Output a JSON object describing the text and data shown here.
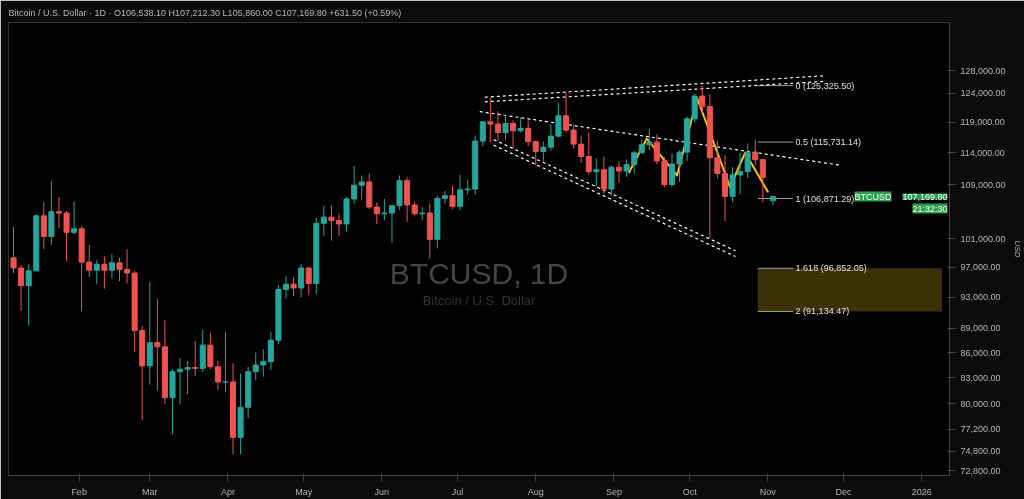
{
  "chart_data": {
    "type": "candlestick",
    "title": "BTCUSD, 1D",
    "subtitle": "Bitcoin / U.S. Dollar",
    "ylabel": "USD",
    "log": "y",
    "grid": false,
    "colors": [
      "#ef5350",
      "#ef5350",
      "#26a69a",
      "#26a69a",
      "#ef5350",
      "#26a69a",
      "#ef5350",
      "#ef5350",
      "#26a69a",
      "#ef5350",
      "#ef5350",
      "#26a69a",
      "#ef5350",
      "#26a69a",
      "#ef5350",
      "#ef5350",
      "#ef5350",
      "#ef5350",
      "#26a69a",
      "#ef5350",
      "#ef5350",
      "#26a69a",
      "#26a69a",
      "#26a69a",
      "#ef5350",
      "#26a69a",
      "#ef5350",
      "#ef5350",
      "#26a69a",
      "#ef5350",
      "#26a69a",
      "#26a69a",
      "#26a69a",
      "#26a69a",
      "#26a69a",
      "#26a69a",
      "#26a69a",
      "#ef5350",
      "#26a69a",
      "#ef5350",
      "#26a69a",
      "#26a69a",
      "#ef5350",
      "#ef5350",
      "#26a69a",
      "#26a69a",
      "#26a69a",
      "#ef5350",
      "#ef5350",
      "#26a69a",
      "#26a69a",
      "#26a69a",
      "#ef5350",
      "#ef5350",
      "#26a69a",
      "#ef5350",
      "#26a69a",
      "#26a69a",
      "#ef5350",
      "#26a69a",
      "#26a69a",
      "#26a69a",
      "#26a69a",
      "#ef5350",
      "#ef5350",
      "#26a69a",
      "#ef5350",
      "#26a69a",
      "#ef5350",
      "#ef5350",
      "#26a69a",
      "#26a69a",
      "#26a69a",
      "#ef5350",
      "#ef5350",
      "#ef5350",
      "#ef5350",
      "#26a69a",
      "#ef5350",
      "#26a69a",
      "#ef5350",
      "#26a69a",
      "#26a69a",
      "#26a69a",
      "#26a69a",
      "#ef5350",
      "#ef5350",
      "#26a69a",
      "#26a69a",
      "#26a69a",
      "#26a69a",
      "#ef5350",
      "#ef5350",
      "#ef5350",
      "#ef5350",
      "#26a69a",
      "#26a69a",
      "#26a69a",
      "#ef5350",
      "#ef5350",
      "#26a69a"
    ],
    "x": [
      "2025-01-06",
      "2025-01-09",
      "2025-01-12",
      "2025-01-15",
      "2025-01-18",
      "2025-01-21",
      "2025-01-24",
      "2025-01-27",
      "2025-01-30",
      "2025-02-02",
      "2025-02-05",
      "2025-02-08",
      "2025-02-11",
      "2025-02-14",
      "2025-02-17",
      "2025-02-20",
      "2025-02-23",
      "2025-02-26",
      "2025-03-01",
      "2025-03-04",
      "2025-03-07",
      "2025-03-10",
      "2025-03-13",
      "2025-03-16",
      "2025-03-19",
      "2025-03-22",
      "2025-03-25",
      "2025-03-28",
      "2025-03-31",
      "2025-04-03",
      "2025-04-06",
      "2025-04-09",
      "2025-04-12",
      "2025-04-15",
      "2025-04-18",
      "2025-04-21",
      "2025-04-24",
      "2025-04-27",
      "2025-04-30",
      "2025-05-03",
      "2025-05-06",
      "2025-05-09",
      "2025-05-12",
      "2025-05-15",
      "2025-05-18",
      "2025-05-21",
      "2025-05-24",
      "2025-05-27",
      "2025-05-30",
      "2025-06-02",
      "2025-06-05",
      "2025-06-08",
      "2025-06-11",
      "2025-06-14",
      "2025-06-17",
      "2025-06-20",
      "2025-06-23",
      "2025-06-26",
      "2025-06-29",
      "2025-07-02",
      "2025-07-05",
      "2025-07-08",
      "2025-07-11",
      "2025-07-14",
      "2025-07-17",
      "2025-07-20",
      "2025-07-23",
      "2025-07-26",
      "2025-07-29",
      "2025-08-01",
      "2025-08-04",
      "2025-08-07",
      "2025-08-10",
      "2025-08-13",
      "2025-08-16",
      "2025-08-19",
      "2025-08-22",
      "2025-08-25",
      "2025-08-28",
      "2025-08-31",
      "2025-09-03",
      "2025-09-06",
      "2025-09-09",
      "2025-09-12",
      "2025-09-15",
      "2025-09-18",
      "2025-09-21",
      "2025-09-24",
      "2025-09-27",
      "2025-09-30",
      "2025-10-03",
      "2025-10-06",
      "2025-10-09",
      "2025-10-12",
      "2025-10-15",
      "2025-10-18",
      "2025-10-21",
      "2025-10-24",
      "2025-10-27",
      "2025-10-30",
      "2025-11-03"
    ],
    "ohlc": [
      [
        98300,
        102700,
        96200,
        96900
      ],
      [
        96900,
        97300,
        91200,
        94500
      ],
      [
        94500,
        97400,
        89300,
        96500
      ],
      [
        96500,
        104500,
        96500,
        104300
      ],
      [
        104300,
        106300,
        99500,
        101300
      ],
      [
        101300,
        109500,
        100100,
        104900
      ],
      [
        104900,
        107100,
        102500,
        104700
      ],
      [
        104700,
        105000,
        97800,
        101900
      ],
      [
        101900,
        106400,
        101600,
        102400
      ],
      [
        102400,
        102800,
        91200,
        97700
      ],
      [
        97700,
        100100,
        95700,
        96600
      ],
      [
        96600,
        98000,
        94700,
        97400
      ],
      [
        97400,
        98500,
        94100,
        96600
      ],
      [
        96600,
        98800,
        95500,
        97600
      ],
      [
        97600,
        98300,
        95100,
        96700
      ],
      [
        96700,
        99500,
        94800,
        96200
      ],
      [
        96200,
        96500,
        86100,
        88700
      ],
      [
        88700,
        89300,
        78200,
        84400
      ],
      [
        84400,
        95000,
        82200,
        87200
      ],
      [
        87200,
        92800,
        81500,
        86700
      ],
      [
        86700,
        90000,
        80000,
        80700
      ],
      [
        80700,
        84000,
        76600,
        83700
      ],
      [
        83700,
        85300,
        79900,
        84000
      ],
      [
        84000,
        85000,
        81100,
        84200
      ],
      [
        84200,
        87400,
        83200,
        84100
      ],
      [
        84100,
        88800,
        83700,
        86900
      ],
      [
        86900,
        88400,
        84000,
        84300
      ],
      [
        84300,
        85000,
        81600,
        82500
      ],
      [
        82500,
        88500,
        81300,
        82500
      ],
      [
        82500,
        84700,
        74500,
        76300
      ],
      [
        76300,
        83500,
        74500,
        79600
      ],
      [
        79600,
        84300,
        78400,
        83700
      ],
      [
        83700,
        86000,
        82700,
        84500
      ],
      [
        84500,
        86400,
        83100,
        84900
      ],
      [
        84900,
        88500,
        83900,
        87500
      ],
      [
        87500,
        94600,
        87000,
        94000
      ],
      [
        94000,
        95800,
        92800,
        94700
      ],
      [
        94700,
        95600,
        93100,
        94200
      ],
      [
        94200,
        97400,
        93000,
        96900
      ],
      [
        96900,
        97000,
        93300,
        94800
      ],
      [
        94800,
        104000,
        93400,
        103200
      ],
      [
        103200,
        105800,
        101400,
        104100
      ],
      [
        104100,
        105800,
        100700,
        103600
      ],
      [
        103600,
        104600,
        101400,
        103100
      ],
      [
        103100,
        107100,
        102000,
        106800
      ],
      [
        106800,
        111900,
        106100,
        108900
      ],
      [
        108900,
        110400,
        106700,
        109400
      ],
      [
        109400,
        110700,
        105300,
        105600
      ],
      [
        105600,
        106300,
        103100,
        104600
      ],
      [
        104600,
        106800,
        103700,
        104700
      ],
      [
        104700,
        105900,
        100400,
        105800
      ],
      [
        105800,
        110400,
        105200,
        109600
      ],
      [
        109600,
        110200,
        103400,
        105900
      ],
      [
        105900,
        106400,
        104300,
        104600
      ],
      [
        104600,
        105600,
        103600,
        104700
      ],
      [
        104700,
        106100,
        98200,
        100900
      ],
      [
        100900,
        107300,
        99600,
        106900
      ],
      [
        106900,
        108000,
        106100,
        107300
      ],
      [
        107300,
        108800,
        105300,
        105700
      ],
      [
        105700,
        110500,
        105100,
        108200
      ],
      [
        108200,
        109700,
        107500,
        108300
      ],
      [
        108300,
        116800,
        107500,
        115900
      ],
      [
        115900,
        119200,
        115100,
        119100
      ],
      [
        119100,
        123200,
        115700,
        118700
      ],
      [
        118700,
        120900,
        116000,
        117300
      ],
      [
        117300,
        120200,
        116100,
        118800
      ],
      [
        118800,
        119300,
        114700,
        117600
      ],
      [
        117600,
        119800,
        117300,
        118000
      ],
      [
        118000,
        119300,
        115100,
        115800
      ],
      [
        115800,
        116000,
        112000,
        114200
      ],
      [
        114200,
        115800,
        112600,
        114900
      ],
      [
        114900,
        118700,
        114300,
        116700
      ],
      [
        116700,
        122300,
        116600,
        120100
      ],
      [
        120100,
        124100,
        117300,
        117700
      ],
      [
        117700,
        118600,
        114700,
        115400
      ],
      [
        115400,
        116800,
        112400,
        113400
      ],
      [
        113400,
        117300,
        110600,
        111000
      ],
      [
        111000,
        113100,
        108700,
        111300
      ],
      [
        111300,
        113400,
        107500,
        108300
      ],
      [
        108300,
        112000,
        107300,
        111700
      ],
      [
        111700,
        112600,
        109300,
        111100
      ],
      [
        111100,
        112900,
        110200,
        112100
      ],
      [
        112100,
        114300,
        110700,
        114000
      ],
      [
        114000,
        116300,
        113900,
        115300
      ],
      [
        115300,
        117900,
        114400,
        115700
      ],
      [
        115700,
        117000,
        112200,
        112700
      ],
      [
        112700,
        113300,
        108600,
        109000
      ],
      [
        109000,
        113900,
        108700,
        112200
      ],
      [
        112200,
        114400,
        109400,
        114100
      ],
      [
        114100,
        120000,
        112700,
        119600
      ],
      [
        119600,
        123900,
        119000,
        123500
      ],
      [
        123500,
        125300,
        120600,
        121700
      ],
      [
        121700,
        123800,
        101000,
        113200
      ],
      [
        113200,
        116000,
        110000,
        110700
      ],
      [
        110700,
        113600,
        103500,
        107200
      ],
      [
        107200,
        111700,
        106400,
        110500
      ],
      [
        110500,
        114000,
        107500,
        111000
      ],
      [
        111000,
        115500,
        110000,
        114100
      ],
      [
        114100,
        116100,
        112000,
        112900
      ],
      [
        112900,
        113000,
        106300,
        110100
      ],
      [
        106538.1,
        107212.3,
        105860,
        107169.8
      ]
    ],
    "series": [
      {
        "type": "line",
        "color": "#ffffff",
        "line_style": "dotted",
        "x": [
          "2025-07-12",
          "2025-11-24"
        ],
        "values": [
          123300,
          127100
        ]
      },
      {
        "type": "line",
        "color": "#ffffff",
        "line_style": "dotted",
        "x": [
          "2025-07-12",
          "2025-11-24"
        ],
        "values": [
          122500,
          126100
        ]
      },
      {
        "type": "line",
        "color": "#ffffff",
        "line_style": "dotted",
        "x": [
          "2025-07-10",
          "2025-11-30"
        ],
        "values": [
          120800,
          112000
        ]
      },
      {
        "type": "line",
        "color": "#ffffff",
        "line_style": "dotted",
        "x": [
          "2025-07-15T12:00",
          "2025-10-19"
        ],
        "values": [
          116100,
          99300
        ]
      },
      {
        "type": "line",
        "color": "#ffffff",
        "line_style": "dotted",
        "x": [
          "2025-07-15T12:00",
          "2025-10-19"
        ],
        "values": [
          115200,
          98500
        ]
      },
      {
        "type": "line",
        "color": "#f2c21b",
        "line_style": "solid",
        "x": [
          "2025-09-07",
          "2025-09-14",
          "2025-09-26",
          "2025-10-04",
          "2025-10-11",
          "2025-10-17",
          "2025-10-23",
          "2025-11-01"
        ],
        "values": [
          110900,
          116300,
          110400,
          123100,
          115100,
          108600,
          114000,
          107900
        ]
      }
    ],
    "ref_lines": [
      {
        "axis": "y",
        "value": 125325.5,
        "label": "0 (125,325.50)",
        "color": "#9e9e9e"
      },
      {
        "axis": "y",
        "value": 115731.14,
        "label": "0.5 (115,731.14)",
        "color": "#9e9e9e"
      },
      {
        "axis": "y",
        "value": 106871.29,
        "label": "1 (106,871.29)",
        "color": "#9e9e9e"
      },
      {
        "axis": "y",
        "value": 96852.05,
        "label": "1.618 (96,852.05)",
        "color": "#9e9e9e"
      },
      {
        "axis": "y",
        "value": 91134.47,
        "label": "2 (91,134.47)",
        "color": "#9e9e9e"
      }
    ],
    "bands": [
      {
        "axis": "y",
        "from": 91134.47,
        "to": 96852.05,
        "color": "#3a3106"
      }
    ],
    "annotations": [
      "Bitcoin / U.S. Dollar · 1D · O106,538.10 H107,212.30 L105,860.00 C107,169.80 +631.50 (+0.59%)",
      "BTCUSD",
      "107,169.80",
      "21:32:30"
    ],
    "xlim": [
      "2025-01-04",
      "2026-01-12"
    ],
    "xticks": [
      {
        "value": "2025-02-01",
        "label": "Feb"
      },
      {
        "value": "2025-03-01",
        "label": "Mar"
      },
      {
        "value": "2025-04-01",
        "label": "Apr"
      },
      {
        "value": "2025-05-01",
        "label": "May"
      },
      {
        "value": "2025-06-01",
        "label": "Jun"
      },
      {
        "value": "2025-07-01",
        "label": "Jul"
      },
      {
        "value": "2025-08-01",
        "label": "Aug"
      },
      {
        "value": "2025-09-01",
        "label": "Sep"
      },
      {
        "value": "2025-10-01",
        "label": "Oct"
      },
      {
        "value": "2025-11-01",
        "label": "Nov"
      },
      {
        "value": "2025-12-01",
        "label": "Dec"
      },
      {
        "value": "2026-01-01",
        "label": "2026"
      }
    ],
    "ylim": [
      72300,
      137000
    ],
    "yticks": [
      {
        "value": 72800,
        "label": "72,800.00"
      },
      {
        "value": 74800,
        "label": "74,800.00"
      },
      {
        "value": 77200,
        "label": "77,200.00"
      },
      {
        "value": 80000,
        "label": "80,000.00"
      },
      {
        "value": 83000,
        "label": "83,000.00"
      },
      {
        "value": 86000,
        "label": "86,000.00"
      },
      {
        "value": 89000,
        "label": "89,000.00"
      },
      {
        "value": 93000,
        "label": "93,000.00"
      },
      {
        "value": 97000,
        "label": "97,000.00"
      },
      {
        "value": 101000,
        "label": "101,000.00"
      },
      {
        "value": 109000,
        "label": "109,000.00"
      },
      {
        "value": 114000,
        "label": "114,000.00"
      },
      {
        "value": 119000,
        "label": "119,000.00"
      },
      {
        "value": 124000,
        "label": "124,000.00"
      },
      {
        "value": 128000,
        "label": "128,000.00"
      }
    ]
  }
}
